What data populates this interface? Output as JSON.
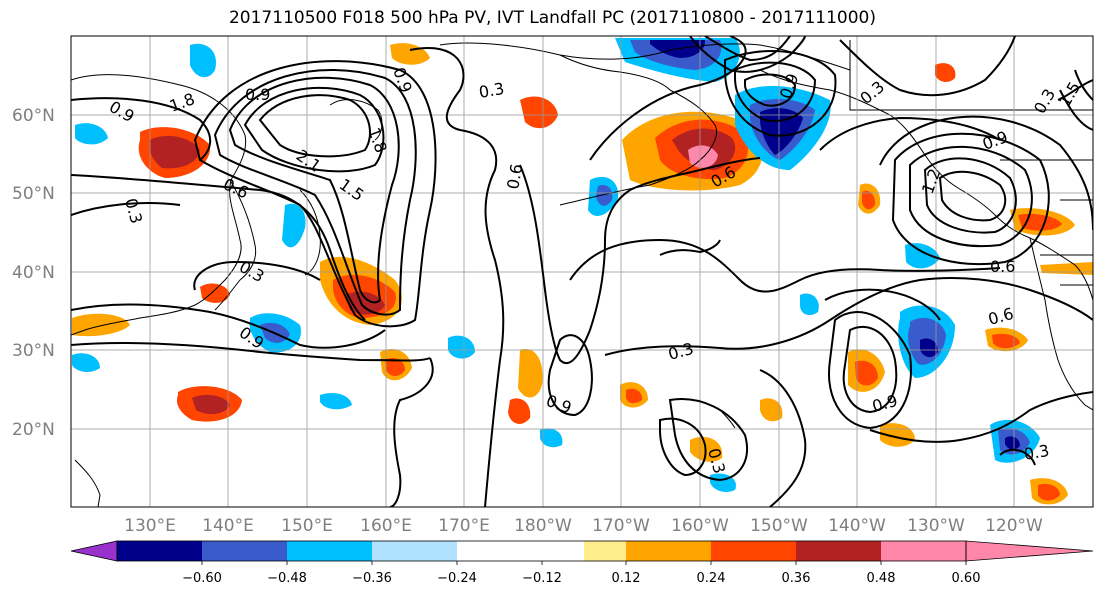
{
  "title": "2017110500 F018 500 hPa PV, IVT Landfall PC (2017110800 - 2017111000)",
  "lat_labels": [
    "60°N",
    "50°N",
    "40°N",
    "30°N",
    "20°N"
  ],
  "lon_labels": [
    "130°E",
    "140°E",
    "150°E",
    "160°E",
    "170°E",
    "180°W",
    "170°W",
    "160°W",
    "150°W",
    "140°W",
    "130°W",
    "120°W"
  ],
  "contour_labels": [
    "0.9",
    "1.8",
    "0.9",
    "0.3",
    "0.9",
    "1.8",
    "2.1",
    "1.5",
    "0.6",
    "0.3",
    "0.3",
    "0.9",
    "0.6",
    "0.6",
    "0.3",
    "0.9",
    "0.9",
    "0.3",
    "0.9",
    "0.3",
    "0.9",
    "0.6",
    "0.6",
    "0.3",
    "0.3",
    "1.5",
    "1.2"
  ],
  "colorbar": {
    "ticks": [
      "−0.60",
      "−0.48",
      "−0.36",
      "−0.24",
      "−0.12",
      "0.12",
      "0.24",
      "0.36",
      "0.48",
      "0.60"
    ],
    "colors": [
      "#9932cc",
      "#00008b",
      "#3a5bcc",
      "#00bfff",
      "#b0e2ff",
      "#ffffff",
      "#ffffff",
      "#ffec8b",
      "#ffa500",
      "#ff4500",
      "#b22222",
      "#ff88aa"
    ]
  },
  "chart_data": {
    "type": "heatmap",
    "title": "2017110500 F018 500 hPa PV, IVT Landfall PC (2017110800 - 2017111000)",
    "domain": {
      "lon_range": [
        "120°E",
        "110°W"
      ],
      "lat_range": [
        "10°N",
        "70°N"
      ]
    },
    "contour_levels": [
      0.3,
      0.6,
      0.9,
      1.2,
      1.5,
      1.8,
      2.1
    ],
    "colorbar_levels": [
      -0.6,
      -0.48,
      -0.36,
      -0.24,
      -0.12,
      0.12,
      0.24,
      0.36,
      0.48,
      0.6
    ],
    "grid": true
  }
}
